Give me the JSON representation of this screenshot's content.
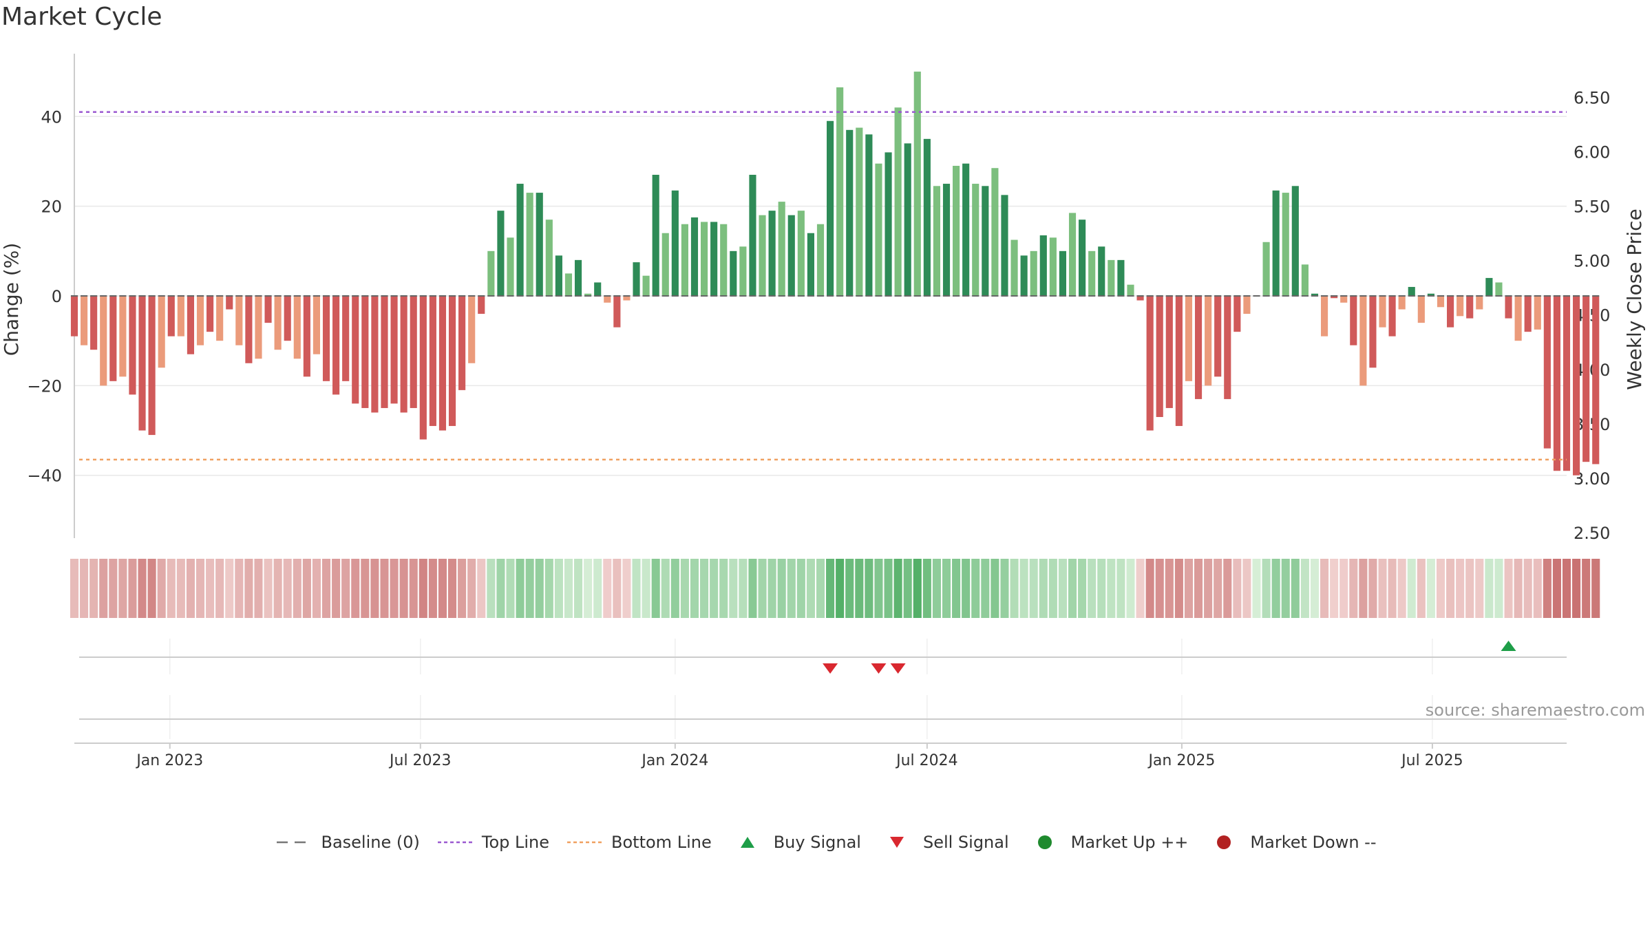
{
  "chart_data": {
    "type": "bar",
    "title": "Market Cycle",
    "ylabel_left": "Change (%)",
    "ylabel_right": "Weekly Close Price",
    "left_axis": {
      "ylim": [
        -54,
        54
      ],
      "ticks": [
        -40,
        -20,
        0,
        20,
        40
      ],
      "tick_labels": [
        "−40",
        "−20",
        "0",
        "20",
        "40"
      ]
    },
    "right_axis": {
      "ylim": [
        2.45,
        6.9
      ],
      "ticks": [
        2.5,
        3.0,
        3.5,
        4.0,
        4.5,
        5.0,
        5.5,
        6.0,
        6.5
      ],
      "tick_labels": [
        "2.50",
        "3.00",
        "3.50",
        "4.00",
        "4.50",
        "5.00",
        "5.50",
        "6.00",
        "6.50"
      ]
    },
    "x_range": [
      "2022-10-24",
      "2025-10-06"
    ],
    "x_ticks": [
      {
        "date": "2023-01-01",
        "label": "Jan 2023"
      },
      {
        "date": "2023-07-01",
        "label": "Jul 2023"
      },
      {
        "date": "2024-01-01",
        "label": "Jan 2024"
      },
      {
        "date": "2024-07-01",
        "label": "Jul 2024"
      },
      {
        "date": "2025-01-01",
        "label": "Jan 2025"
      },
      {
        "date": "2025-07-01",
        "label": "Jul 2025"
      }
    ],
    "top_line": 41,
    "bottom_line": -36.5,
    "baseline": 0,
    "weekly_change": {
      "start_date": "2022-10-24",
      "interval_days": 7,
      "values": [
        -9,
        -11,
        -12,
        -20,
        -19,
        -18,
        -22,
        -30,
        -31,
        -16,
        -9,
        -9,
        -13,
        -11,
        -8,
        -10,
        -3,
        -11,
        -15,
        -14,
        -6,
        -12,
        -10,
        -14,
        -18,
        -13,
        -19,
        -22,
        -19,
        -24,
        -25,
        -26,
        -25,
        -24,
        -26,
        -25,
        -32,
        -29,
        -30,
        -29,
        -21,
        -15,
        -4,
        10,
        19,
        13,
        25,
        23,
        23,
        17,
        9,
        5,
        8,
        0.5,
        3,
        -1.5,
        -7,
        -1,
        7.5,
        4.5,
        27,
        14,
        23.5,
        16,
        17.5,
        16.5,
        16.5,
        16,
        10,
        11,
        27,
        18,
        19,
        21,
        18,
        19,
        14,
        16,
        39,
        46.5,
        37,
        37.5,
        36,
        29.5,
        32,
        42,
        34,
        50,
        35,
        24.5,
        25,
        29,
        29.5,
        25,
        24.5,
        28.5,
        22.5,
        12.5,
        9,
        10,
        13.5,
        13,
        10,
        18.5,
        17,
        10,
        11,
        8,
        8,
        2.5,
        -1,
        -30,
        -27,
        -25,
        -29,
        -19,
        -23,
        -20,
        -18,
        -23,
        -8,
        -4,
        0,
        12,
        23.5,
        23,
        24.5,
        7,
        0.5,
        -9,
        -0.5,
        -1.5,
        -11,
        -20,
        -16,
        -7,
        -9,
        -3,
        2,
        -6,
        0.5,
        -2.5,
        -7,
        -4.5,
        -5,
        -3,
        4,
        3,
        -5,
        -10,
        -8,
        -7.5,
        -34,
        -39,
        -39,
        -40,
        -37,
        -37.5
      ]
    },
    "buy_signals": [
      "2025-08-25"
    ],
    "sell_signals": [
      "2024-04-22",
      "2024-05-27",
      "2024-06-10"
    ],
    "legend": [
      {
        "label": "Baseline (0)",
        "kind": "dash-long",
        "color": "#777777"
      },
      {
        "label": "Top Line",
        "kind": "dash-short",
        "color": "#9b59d0"
      },
      {
        "label": "Bottom Line",
        "kind": "dash-short",
        "color": "#f0a060"
      },
      {
        "label": "Buy Signal",
        "kind": "triangle-up",
        "color": "#1e9e48"
      },
      {
        "label": "Sell Signal",
        "kind": "triangle-down",
        "color": "#d9282f"
      },
      {
        "label": "Market Up ++",
        "kind": "dot",
        "color": "#1f8a2e"
      },
      {
        "label": "Market Down --",
        "kind": "dot",
        "color": "#b22222"
      }
    ],
    "colors": {
      "strong_up": "#2e8b57",
      "weak_up": "#7cbf7e",
      "strong_down": "#d05a5a",
      "weak_down": "#eb9b7b",
      "grid": "#e8e8e8",
      "axis": "#cccccc"
    }
  },
  "source_note": "source: sharemaestro.com"
}
